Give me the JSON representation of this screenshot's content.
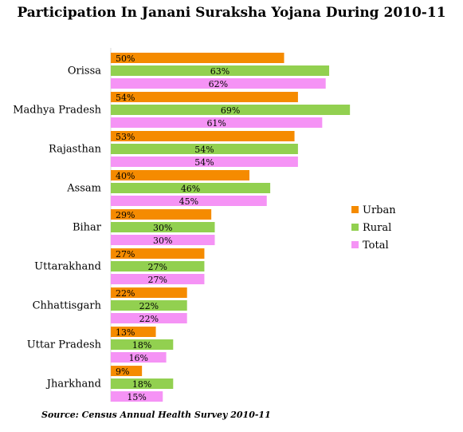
{
  "chart_data": {
    "type": "bar",
    "orientation": "horizontal",
    "title": "Participation In Janani Suraksha Yojana During 2010-11",
    "source": "Source: Census Annual Health Survey 2010-11",
    "categories": [
      "Orissa",
      "Madhya Pradesh",
      "Rajasthan",
      "Assam",
      "Bihar",
      "Uttarakhand",
      "Chhattisgarh",
      "Uttar Pradesh",
      "Jharkhand"
    ],
    "series": [
      {
        "name": "Urban",
        "color": "#f58b00",
        "values": [
          50,
          54,
          53,
          40,
          29,
          27,
          22,
          13,
          9
        ],
        "labels": [
          "50%",
          "54%",
          "53%",
          "40%",
          "29%",
          "27%",
          "22%",
          "13%",
          "9%"
        ]
      },
      {
        "name": "Rural",
        "color": "#92d050",
        "values": [
          63,
          69,
          54,
          46,
          30,
          27,
          22,
          18,
          18
        ],
        "labels": [
          "63%",
          "69%",
          "54%",
          "46%",
          "30%",
          "27%",
          "22%",
          "18%",
          "18%"
        ]
      },
      {
        "name": "Total",
        "color": "#f593f5",
        "values": [
          62,
          61,
          54,
          45,
          30,
          27,
          22,
          16,
          15
        ],
        "labels": [
          "62%",
          "61%",
          "54%",
          "45%",
          "30%",
          "27%",
          "22%",
          "16%",
          "15%"
        ]
      }
    ],
    "xlim": [
      0,
      100
    ],
    "grid": false,
    "legend_position": "right"
  }
}
